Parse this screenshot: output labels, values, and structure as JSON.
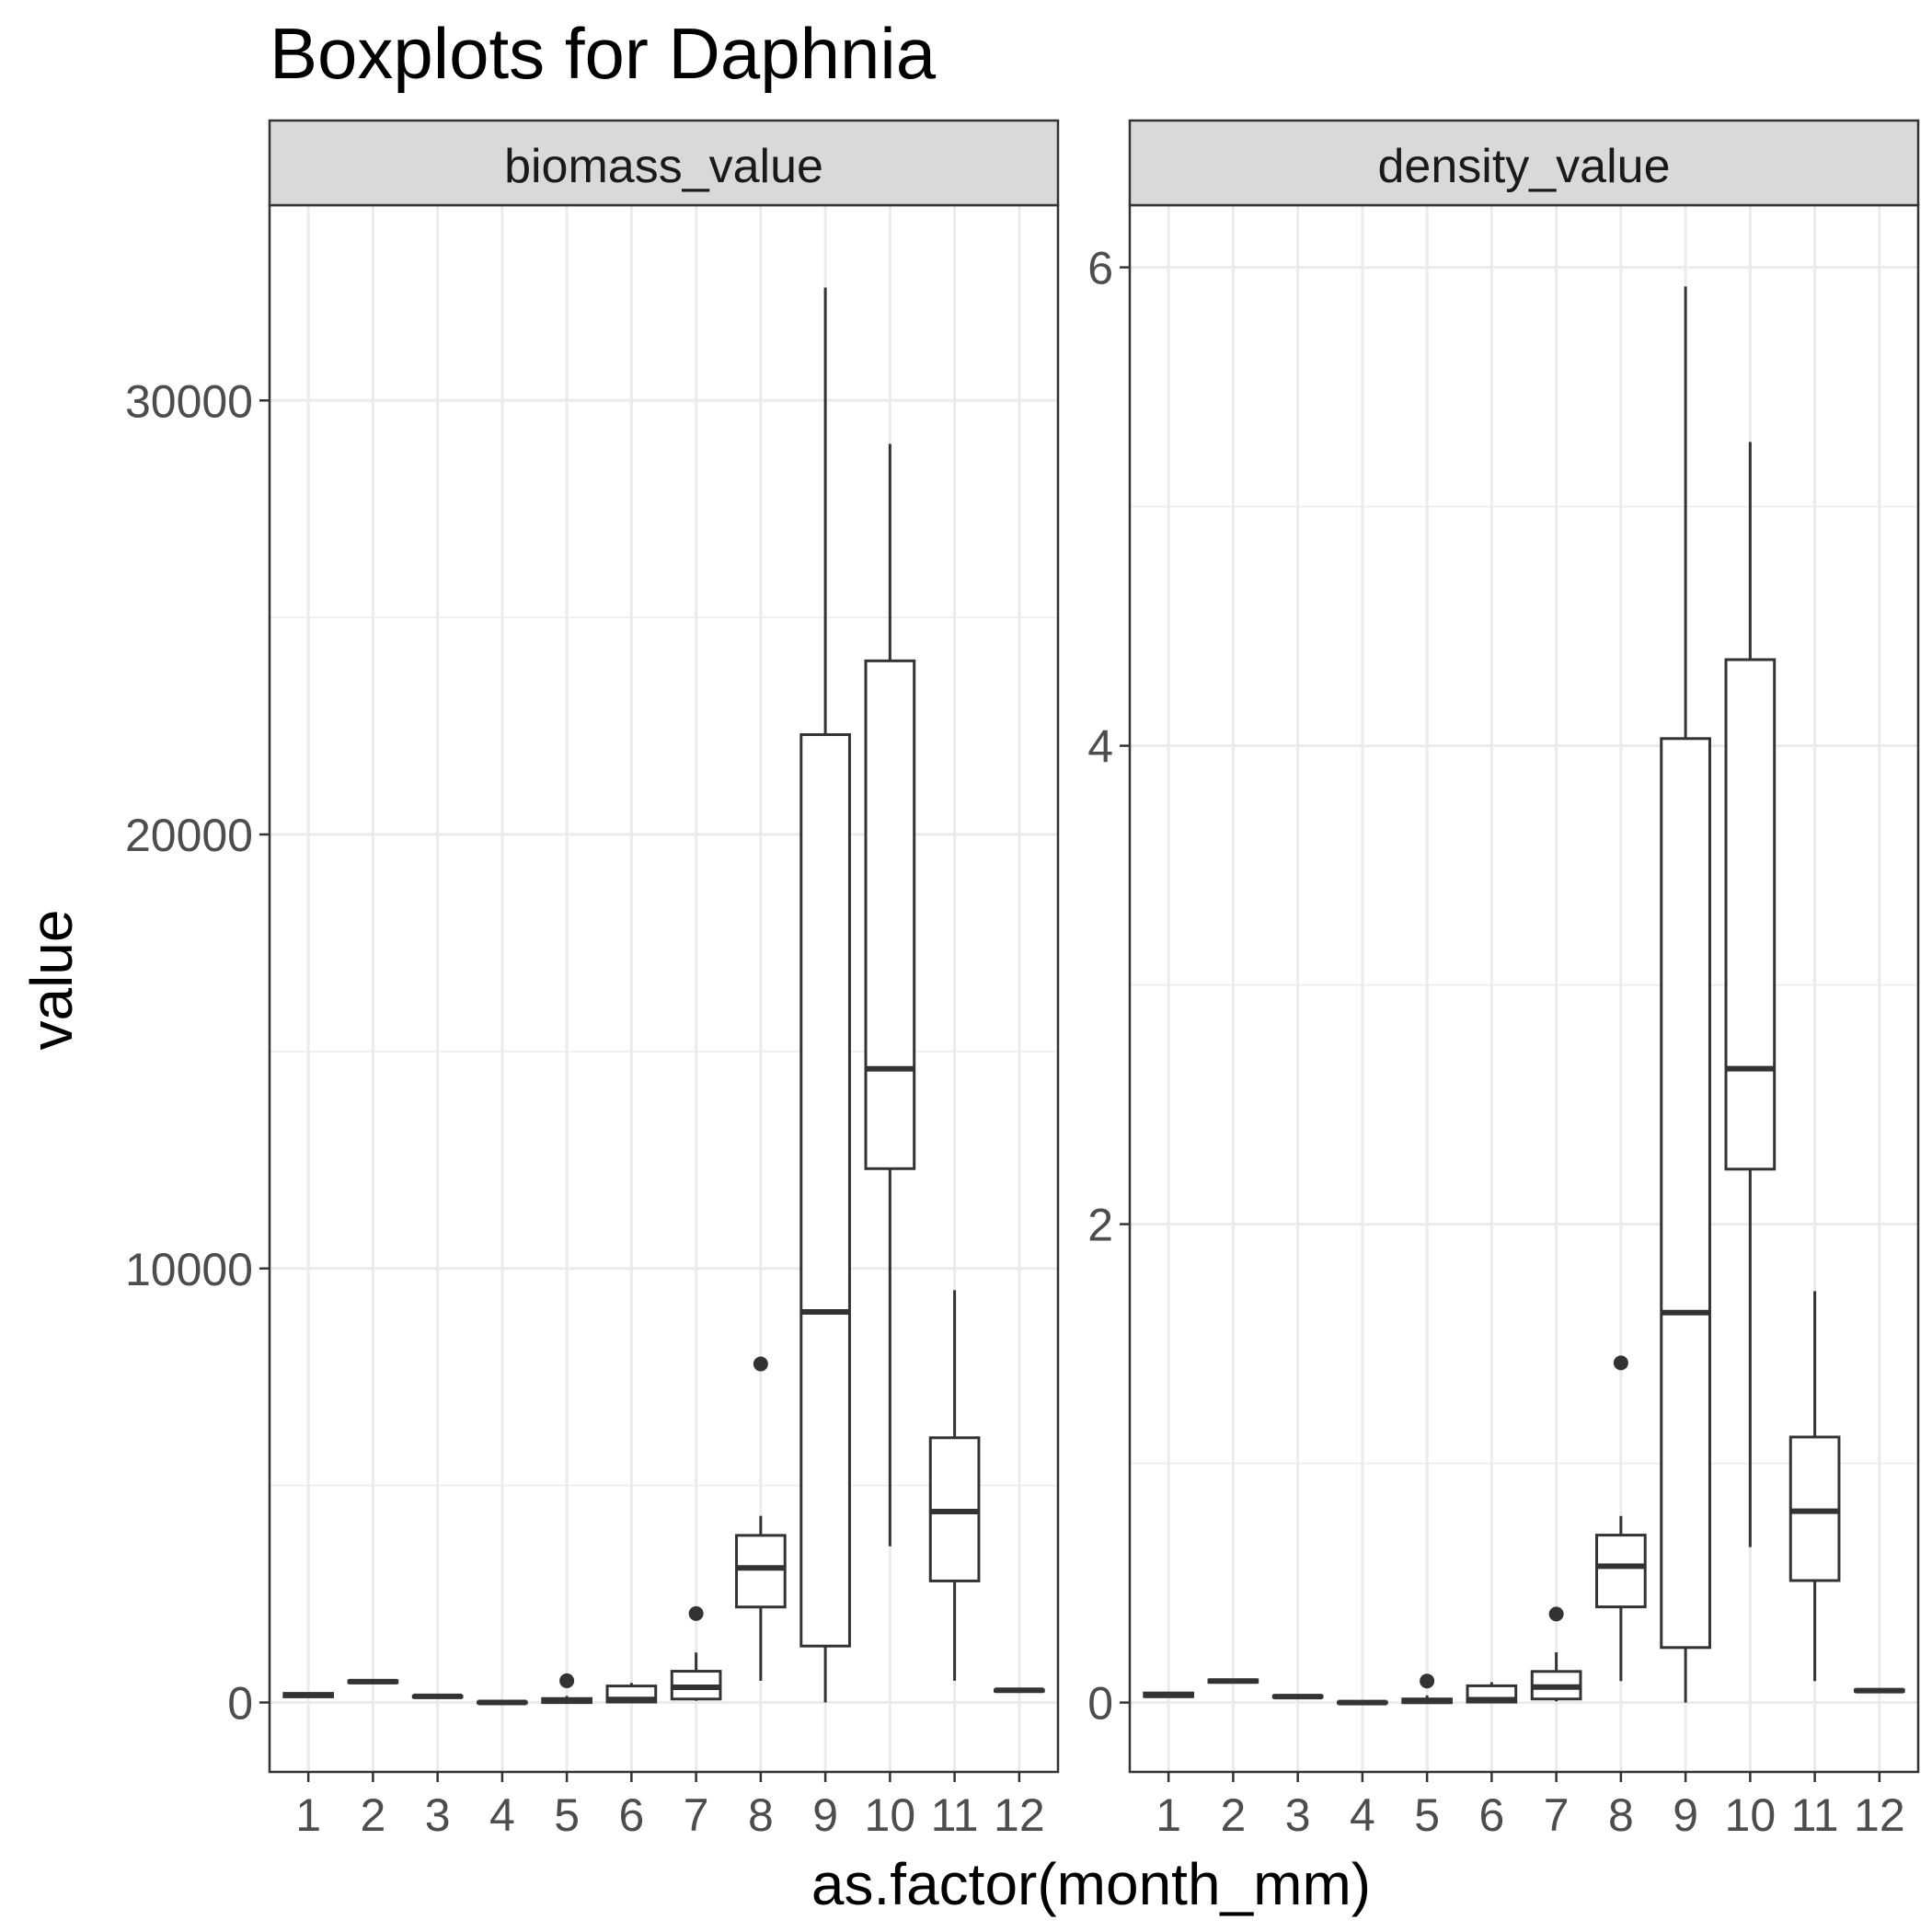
{
  "chart_data": {
    "type": "boxplot",
    "title": "Boxplots for Daphnia",
    "xlabel": "as.factor(month_mm)",
    "ylabel": "value",
    "categories": [
      "1",
      "2",
      "3",
      "4",
      "5",
      "6",
      "7",
      "8",
      "9",
      "10",
      "11",
      "12"
    ],
    "grid": true,
    "facets": [
      {
        "name": "biomass_value",
        "ylim": [
          -1600,
          34500
        ],
        "yticks": [
          0,
          10000,
          20000,
          30000
        ],
        "ytick_labels": [
          "0",
          "10000",
          "20000",
          "30000"
        ],
        "boxes": [
          {
            "x": "1",
            "min": 120,
            "q1": 130,
            "median": 170,
            "q3": 210,
            "max": 230,
            "outliers": []
          },
          {
            "x": "2",
            "min": 440,
            "q1": 460,
            "median": 480,
            "q3": 500,
            "max": 510,
            "outliers": []
          },
          {
            "x": "3",
            "min": 110,
            "q1": 120,
            "median": 140,
            "q3": 150,
            "max": 160,
            "outliers": []
          },
          {
            "x": "4",
            "min": -20,
            "q1": -10,
            "median": 0,
            "q3": 10,
            "max": 20,
            "outliers": []
          },
          {
            "x": "5",
            "min": -30,
            "q1": 0,
            "median": 30,
            "q3": 90,
            "max": 150,
            "outliers": [
              500
            ]
          },
          {
            "x": "6",
            "min": 0,
            "q1": 10,
            "median": 70,
            "q3": 380,
            "max": 450,
            "outliers": []
          },
          {
            "x": "7",
            "min": 40,
            "q1": 80,
            "median": 350,
            "q3": 720,
            "max": 1150,
            "outliers": [
              2050
            ]
          },
          {
            "x": "8",
            "min": 500,
            "q1": 2200,
            "median": 3100,
            "q3": 3850,
            "max": 4300,
            "outliers": [
              7800
            ]
          },
          {
            "x": "9",
            "min": 0,
            "q1": 1300,
            "median": 9000,
            "q3": 22300,
            "max": 32600,
            "outliers": []
          },
          {
            "x": "10",
            "min": 3600,
            "q1": 12300,
            "median": 14600,
            "q3": 24000,
            "max": 29000,
            "outliers": []
          },
          {
            "x": "11",
            "min": 500,
            "q1": 2800,
            "median": 4400,
            "q3": 6100,
            "max": 9500,
            "outliers": []
          },
          {
            "x": "12",
            "min": 250,
            "q1": 260,
            "median": 280,
            "q3": 290,
            "max": 300,
            "outliers": []
          }
        ]
      },
      {
        "name": "density_value",
        "ylim": [
          -0.29,
          6.26
        ],
        "yticks": [
          0,
          2,
          4,
          6
        ],
        "ytick_labels": [
          "0",
          "2",
          "4",
          "6"
        ],
        "boxes": [
          {
            "x": "1",
            "min": 0.02,
            "q1": 0.025,
            "median": 0.03,
            "q3": 0.04,
            "max": 0.045,
            "outliers": []
          },
          {
            "x": "2",
            "min": 0.08,
            "q1": 0.085,
            "median": 0.09,
            "q3": 0.095,
            "max": 0.1,
            "outliers": []
          },
          {
            "x": "3",
            "min": 0.02,
            "q1": 0.022,
            "median": 0.025,
            "q3": 0.028,
            "max": 0.03,
            "outliers": []
          },
          {
            "x": "4",
            "min": -0.005,
            "q1": -0.002,
            "median": 0.0,
            "q3": 0.002,
            "max": 0.005,
            "outliers": []
          },
          {
            "x": "5",
            "min": -0.005,
            "q1": 0.0,
            "median": 0.005,
            "q3": 0.015,
            "max": 0.03,
            "outliers": [
              0.09
            ]
          },
          {
            "x": "6",
            "min": 0.0,
            "q1": 0.002,
            "median": 0.012,
            "q3": 0.07,
            "max": 0.085,
            "outliers": []
          },
          {
            "x": "7",
            "min": 0.005,
            "q1": 0.015,
            "median": 0.065,
            "q3": 0.13,
            "max": 0.21,
            "outliers": [
              0.37
            ]
          },
          {
            "x": "8",
            "min": 0.09,
            "q1": 0.4,
            "median": 0.57,
            "q3": 0.7,
            "max": 0.78,
            "outliers": [
              1.42
            ]
          },
          {
            "x": "9",
            "min": 0.0,
            "q1": 0.23,
            "median": 1.63,
            "q3": 4.03,
            "max": 5.92,
            "outliers": []
          },
          {
            "x": "10",
            "min": 0.65,
            "q1": 2.23,
            "median": 2.65,
            "q3": 4.36,
            "max": 5.27,
            "outliers": []
          },
          {
            "x": "11",
            "min": 0.09,
            "q1": 0.51,
            "median": 0.8,
            "q3": 1.11,
            "max": 1.72,
            "outliers": []
          },
          {
            "x": "12",
            "min": 0.045,
            "q1": 0.047,
            "median": 0.05,
            "q3": 0.053,
            "max": 0.055,
            "outliers": []
          }
        ]
      }
    ]
  }
}
